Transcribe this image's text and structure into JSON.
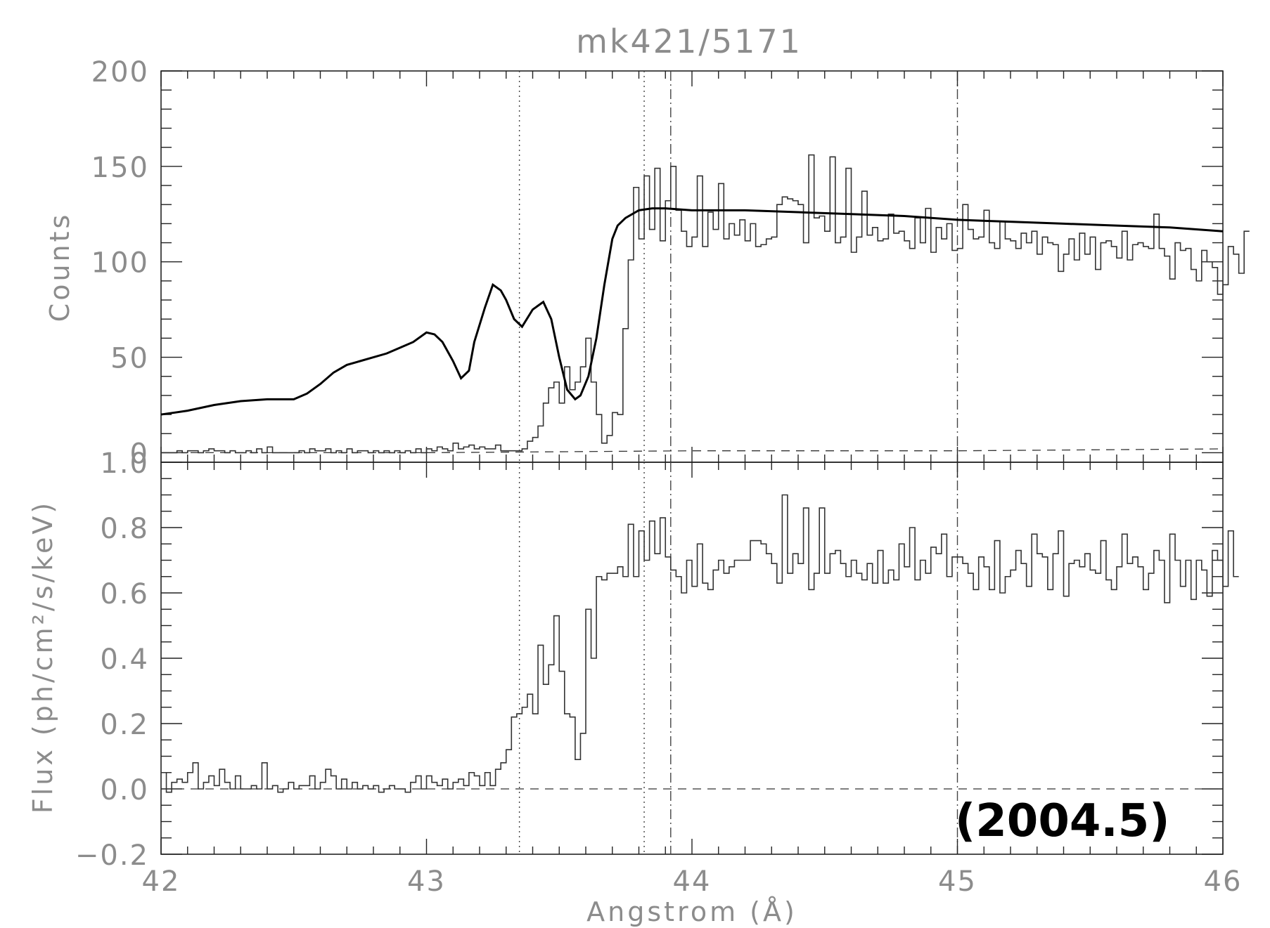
{
  "chart_data": [
    {
      "panel": "top",
      "type": "line",
      "title": "mk421/5171",
      "ylabel": "Counts",
      "xlabel": "Angstrom (Å)",
      "xlim": [
        42,
        46
      ],
      "ylim": [
        -5,
        200
      ],
      "x_ticks": [
        "42",
        "43",
        "44",
        "45",
        "46"
      ],
      "y_ticks": [
        "0",
        "50",
        "100",
        "150",
        "200"
      ],
      "bin_width": 0.02,
      "series": [
        {
          "style": "histogram",
          "x_start": 42.0,
          "values": [
            0,
            0,
            0,
            1,
            0,
            1,
            1,
            0,
            1,
            2,
            1,
            1,
            0,
            1,
            0,
            0,
            1,
            0,
            2,
            0,
            3,
            0,
            0,
            0,
            0,
            0,
            1,
            0,
            2,
            1,
            1,
            2,
            0,
            1,
            0,
            2,
            0,
            1,
            1,
            0,
            1,
            0,
            1,
            0,
            1,
            0,
            1,
            0,
            2,
            0,
            2,
            1,
            3,
            2,
            1,
            5,
            2,
            3,
            4,
            2,
            3,
            2,
            2,
            4,
            1,
            1,
            1,
            1,
            2,
            6,
            8,
            14,
            26,
            34,
            37,
            26,
            45,
            33,
            37,
            45,
            60,
            37,
            20,
            5,
            9,
            21,
            20,
            65,
            101,
            139,
            112,
            145,
            117,
            149,
            111,
            132,
            150,
            127,
            116,
            108,
            113,
            145,
            108,
            126,
            117,
            141,
            112,
            120,
            114,
            122,
            111,
            120,
            108,
            109,
            112,
            113,
            130,
            134,
            133,
            132,
            130,
            110,
            156,
            123,
            124,
            116,
            155,
            110,
            113,
            149,
            105,
            113,
            137,
            114,
            118,
            111,
            112,
            125,
            115,
            116,
            111,
            107,
            123,
            110,
            128,
            105,
            118,
            112,
            120,
            106,
            107,
            130,
            117,
            112,
            113,
            127,
            110,
            107,
            121,
            112,
            111,
            107,
            115,
            110,
            116,
            104,
            113,
            110,
            109,
            95,
            104,
            112,
            101,
            115,
            104,
            113,
            96,
            110,
            111,
            108,
            102,
            116,
            101,
            109,
            110,
            108,
            107,
            125,
            107,
            103,
            91,
            110,
            106,
            107,
            96,
            90,
            106,
            100,
            97,
            83,
            88,
            108,
            104,
            94,
            116
          ]
        },
        {
          "style": "model",
          "x": [
            42.0,
            42.1,
            42.2,
            42.3,
            42.4,
            42.5,
            42.55,
            42.6,
            42.65,
            42.7,
            42.75,
            42.8,
            42.85,
            42.9,
            42.95,
            43.0,
            43.03,
            43.06,
            43.1,
            43.13,
            43.16,
            43.18,
            43.22,
            43.25,
            43.28,
            43.3,
            43.33,
            43.36,
            43.4,
            43.44,
            43.47,
            43.5,
            43.53,
            43.56,
            43.58,
            43.61,
            43.64,
            43.67,
            43.7,
            43.72,
            43.75,
            43.8,
            43.85,
            43.9,
            44.0,
            44.2,
            44.4,
            44.6,
            44.8,
            45.0,
            45.2,
            45.4,
            45.6,
            45.8,
            46.0
          ],
          "y": [
            20,
            22,
            25,
            27,
            28,
            28,
            31,
            36,
            42,
            46,
            48,
            50,
            52,
            55,
            58,
            63,
            62,
            58,
            48,
            39,
            43,
            58,
            76,
            88,
            85,
            80,
            70,
            66,
            75,
            79,
            70,
            50,
            33,
            28,
            30,
            40,
            60,
            88,
            112,
            119,
            123,
            127,
            128,
            128,
            127,
            127,
            126,
            125,
            124,
            122,
            121,
            120,
            119,
            118,
            116
          ]
        },
        {
          "style": "background",
          "x": [
            42.0,
            43.0,
            44.0,
            45.0,
            46.0
          ],
          "y": [
            0,
            0,
            1,
            1,
            2
          ]
        }
      ]
    },
    {
      "panel": "bottom",
      "type": "line",
      "ylabel": "Flux (ph/cm²/s/keV)",
      "xlabel": "Angstrom (Å)",
      "xlim": [
        42,
        46
      ],
      "ylim": [
        -0.2,
        1.0
      ],
      "x_ticks": [
        "42",
        "43",
        "44",
        "45",
        "46"
      ],
      "y_ticks": [
        "−0.2",
        "0.0",
        "0.2",
        "0.4",
        "0.6",
        "0.8",
        "1.0"
      ],
      "bin_width": 0.02,
      "series": [
        {
          "style": "histogram",
          "x_start": 42.0,
          "values": [
            0.05,
            -0.01,
            0.02,
            0.03,
            0.02,
            0.05,
            0.08,
            0.0,
            0.02,
            0.04,
            0.01,
            0.06,
            0.02,
            0.0,
            0.04,
            0.0,
            0.0,
            0.01,
            0.0,
            0.08,
            0.0,
            0.01,
            -0.01,
            0.0,
            0.02,
            0.0,
            0.01,
            0.01,
            0.04,
            0.0,
            0.02,
            0.06,
            0.04,
            0.0,
            0.03,
            0.0,
            0.02,
            0.0,
            0.01,
            0.0,
            0.01,
            -0.01,
            0.0,
            0.01,
            0.0,
            0.0,
            -0.01,
            0.02,
            0.04,
            0.0,
            0.04,
            0.02,
            0.01,
            0.03,
            0.0,
            0.02,
            0.03,
            0.01,
            0.05,
            0.04,
            0.01,
            0.05,
            0.01,
            0.06,
            0.08,
            0.12,
            0.22,
            0.23,
            0.25,
            0.29,
            0.23,
            0.44,
            0.32,
            0.38,
            0.53,
            0.36,
            0.23,
            0.22,
            0.09,
            0.17,
            0.55,
            0.4,
            0.65,
            0.64,
            0.66,
            0.66,
            0.68,
            0.65,
            0.81,
            0.65,
            0.79,
            0.7,
            0.82,
            0.72,
            0.83,
            0.71,
            0.67,
            0.65,
            0.6,
            0.7,
            0.62,
            0.75,
            0.63,
            0.61,
            0.67,
            0.7,
            0.66,
            0.68,
            0.7,
            0.7,
            0.7,
            0.76,
            0.76,
            0.75,
            0.72,
            0.69,
            0.63,
            0.9,
            0.66,
            0.72,
            0.69,
            0.86,
            0.61,
            0.66,
            0.86,
            0.66,
            0.72,
            0.73,
            0.69,
            0.65,
            0.7,
            0.66,
            0.64,
            0.69,
            0.63,
            0.73,
            0.63,
            0.67,
            0.64,
            0.75,
            0.68,
            0.8,
            0.64,
            0.7,
            0.66,
            0.74,
            0.72,
            0.78,
            0.65,
            0.71,
            0.71,
            0.69,
            0.66,
            0.61,
            0.71,
            0.68,
            0.61,
            0.76,
            0.6,
            0.65,
            0.67,
            0.73,
            0.69,
            0.62,
            0.78,
            0.72,
            0.71,
            0.61,
            0.72,
            0.79,
            0.59,
            0.69,
            0.7,
            0.68,
            0.72,
            0.67,
            0.66,
            0.76,
            0.64,
            0.61,
            0.68,
            0.78,
            0.69,
            0.71,
            0.68,
            0.61,
            0.66,
            0.73,
            0.7,
            0.57,
            0.78,
            0.7,
            0.62,
            0.7,
            0.58,
            0.7,
            0.67,
            0.59,
            0.73,
            0.7,
            0.62,
            0.79,
            0.65
          ]
        },
        {
          "style": "zero-line",
          "x": [
            42.0,
            46.0
          ],
          "y": [
            0.0,
            0.0
          ]
        }
      ]
    }
  ],
  "reference_lines": {
    "dotted": [
      43.35,
      43.82
    ],
    "dash_dot": [
      43.92,
      45.0
    ]
  },
  "annotation": "(2004.5)"
}
